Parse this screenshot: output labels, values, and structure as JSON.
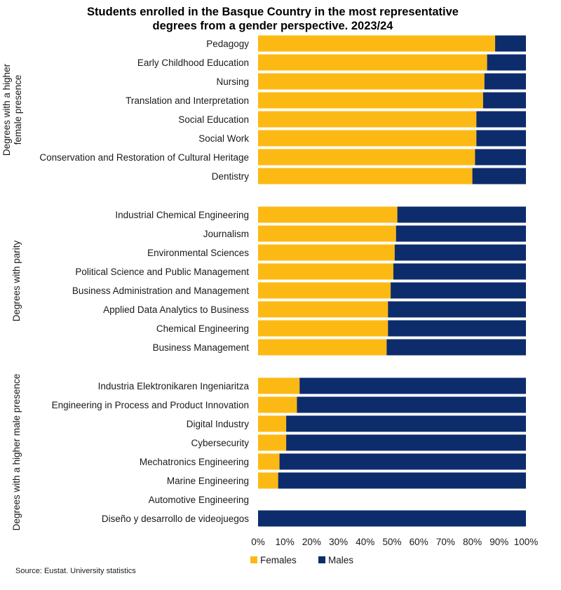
{
  "chart_data": {
    "type": "bar",
    "orientation": "horizontal",
    "stacked": "percent",
    "title": "Students enrolled in the Basque Country in the most representative degrees from a gender perspective. 2023/24",
    "title_lines": [
      "Students enrolled in the Basque Country in the most representative",
      "degrees from a gender perspective. 2023/24"
    ],
    "xlim": [
      0,
      100
    ],
    "x_ticks": [
      "0%",
      "10%",
      "20%",
      "30%",
      "40%",
      "50%",
      "60%",
      "70%",
      "80%",
      "90%",
      "100%"
    ],
    "grid": false,
    "legend_position": "bottom",
    "series": [
      {
        "name": "Females",
        "color": "#FDB913"
      },
      {
        "name": "Males",
        "color": "#0D2C6C"
      }
    ],
    "groups": [
      {
        "label": "Degrees with a higher female presence",
        "label_lines": [
          "Degrees with a higher",
          "female presence"
        ],
        "categories": [
          {
            "name": "Pedagogy",
            "females": 88.5,
            "males": 11.5
          },
          {
            "name": "Early Childhood Education",
            "females": 85.5,
            "males": 14.5
          },
          {
            "name": "Nursing",
            "females": 84.5,
            "males": 15.5
          },
          {
            "name": "Translation and Interpretation",
            "females": 84.0,
            "males": 16.0
          },
          {
            "name": "Social Education",
            "females": 81.5,
            "males": 18.5
          },
          {
            "name": "Social Work",
            "females": 81.5,
            "males": 18.5
          },
          {
            "name": "Conservation and Restoration of Cultural Heritage",
            "females": 81.0,
            "males": 19.0
          },
          {
            "name": "Dentistry",
            "females": 80.0,
            "males": 20.0
          }
        ]
      },
      {
        "label": "Degrees with parity",
        "label_lines": [
          "Degrees with parity"
        ],
        "categories": [
          {
            "name": "Industrial Chemical Engineering",
            "females": 52.0,
            "males": 48.0
          },
          {
            "name": "Journalism",
            "females": 51.5,
            "males": 48.5
          },
          {
            "name": "Environmental Sciences",
            "females": 51.0,
            "males": 49.0
          },
          {
            "name": "Political Science and Public Management",
            "females": 50.5,
            "males": 49.5
          },
          {
            "name": "Business Administration and Management",
            "females": 49.5,
            "males": 50.5
          },
          {
            "name": "Applied Data Analytics to Business",
            "females": 48.5,
            "males": 51.5
          },
          {
            "name": "Chemical Engineering",
            "females": 48.5,
            "males": 51.5
          },
          {
            "name": "Business Management",
            "females": 48.0,
            "males": 52.0
          }
        ]
      },
      {
        "label": "Degrees with a higher male presence",
        "label_lines": [
          "Degrees with a higher male presence"
        ],
        "categories": [
          {
            "name": "Industria Elektronikaren Ingeniaritza",
            "females": 15.5,
            "males": 84.5
          },
          {
            "name": "Engineering in Process and Product Innovation",
            "females": 14.5,
            "males": 85.5
          },
          {
            "name": "Digital Industry",
            "females": 10.5,
            "males": 89.5
          },
          {
            "name": "Cybersecurity",
            "females": 10.5,
            "males": 89.5
          },
          {
            "name": "Mechatronics Engineering",
            "females": 8.0,
            "males": 92.0
          },
          {
            "name": "Marine Engineering",
            "females": 7.5,
            "males": 92.5
          },
          {
            "name": "Automotive Engineering",
            "females": 0,
            "males": 0
          },
          {
            "name": "Diseño y desarrollo de videojuegos",
            "females": 0,
            "males": 100
          }
        ]
      }
    ],
    "source": "Source: Eustat. University statistics"
  }
}
